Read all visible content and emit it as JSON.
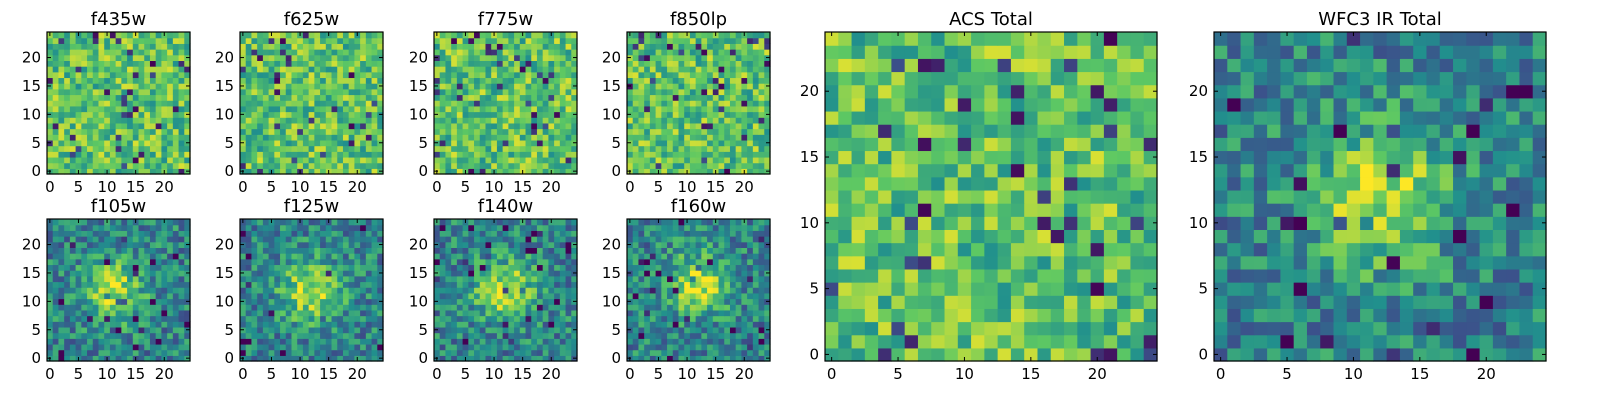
{
  "figure": {
    "colormap": "viridis",
    "colorscale": [
      "#440154",
      "#3b528b",
      "#21908d",
      "#5dc863",
      "#fde725"
    ],
    "background": "#ffffff"
  },
  "chart_data": [
    {
      "type": "heatmap",
      "title": "f435w",
      "grid_size": [
        25,
        25
      ],
      "xlim": [
        0,
        24
      ],
      "ylim": [
        0,
        24
      ],
      "xticks": [
        "0",
        "5",
        "10",
        "15",
        "20"
      ],
      "yticks": [
        "0",
        "5",
        "10",
        "15",
        "20"
      ],
      "pattern": "noise",
      "description_values": "pixel flux map, mostly mid-high values with scattered low pixels"
    },
    {
      "type": "heatmap",
      "title": "f625w",
      "grid_size": [
        25,
        25
      ],
      "xlim": [
        0,
        24
      ],
      "ylim": [
        0,
        24
      ],
      "xticks": [
        "0",
        "5",
        "10",
        "15",
        "20"
      ],
      "yticks": [
        "0",
        "5",
        "10",
        "15",
        "20"
      ],
      "pattern": "noise"
    },
    {
      "type": "heatmap",
      "title": "f775w",
      "grid_size": [
        25,
        25
      ],
      "xlim": [
        0,
        24
      ],
      "ylim": [
        0,
        24
      ],
      "xticks": [
        "0",
        "5",
        "10",
        "15",
        "20"
      ],
      "yticks": [
        "0",
        "5",
        "10",
        "15",
        "20"
      ],
      "pattern": "noise"
    },
    {
      "type": "heatmap",
      "title": "f850lp",
      "grid_size": [
        25,
        25
      ],
      "xlim": [
        0,
        24
      ],
      "ylim": [
        0,
        24
      ],
      "xticks": [
        "0",
        "5",
        "10",
        "15",
        "20"
      ],
      "yticks": [
        "0",
        "5",
        "10",
        "15",
        "20"
      ],
      "pattern": "noise"
    },
    {
      "type": "heatmap",
      "title": "f105w",
      "grid_size": [
        25,
        25
      ],
      "xlim": [
        0,
        24
      ],
      "ylim": [
        0,
        24
      ],
      "xticks": [
        "0",
        "5",
        "10",
        "15",
        "20"
      ],
      "yticks": [
        "0",
        "5",
        "10",
        "15",
        "20"
      ],
      "pattern": "source",
      "source_center": [
        11,
        12
      ]
    },
    {
      "type": "heatmap",
      "title": "f125w",
      "grid_size": [
        25,
        25
      ],
      "xlim": [
        0,
        24
      ],
      "ylim": [
        0,
        24
      ],
      "xticks": [
        "0",
        "5",
        "10",
        "15",
        "20"
      ],
      "yticks": [
        "0",
        "5",
        "10",
        "15",
        "20"
      ],
      "pattern": "source",
      "source_center": [
        12,
        12
      ]
    },
    {
      "type": "heatmap",
      "title": "f140w",
      "grid_size": [
        25,
        25
      ],
      "xlim": [
        0,
        24
      ],
      "ylim": [
        0,
        24
      ],
      "xticks": [
        "0",
        "5",
        "10",
        "15",
        "20"
      ],
      "yticks": [
        "0",
        "5",
        "10",
        "15",
        "20"
      ],
      "pattern": "source",
      "source_center": [
        12,
        12
      ]
    },
    {
      "type": "heatmap",
      "title": "f160w",
      "grid_size": [
        25,
        25
      ],
      "xlim": [
        0,
        24
      ],
      "ylim": [
        0,
        24
      ],
      "xticks": [
        "0",
        "5",
        "10",
        "15",
        "20"
      ],
      "yticks": [
        "0",
        "5",
        "10",
        "15",
        "20"
      ],
      "pattern": "source",
      "source_center": [
        12,
        13
      ]
    },
    {
      "type": "heatmap",
      "title": "ACS Total",
      "grid_size": [
        25,
        25
      ],
      "xlim": [
        0,
        24
      ],
      "ylim": [
        0,
        24
      ],
      "xticks": [
        "0",
        "5",
        "10",
        "15",
        "20"
      ],
      "yticks": [
        "0",
        "5",
        "10",
        "15",
        "20"
      ],
      "pattern": "noise"
    },
    {
      "type": "heatmap",
      "title": "WFC3 IR Total",
      "grid_size": [
        25,
        25
      ],
      "xlim": [
        0,
        24
      ],
      "ylim": [
        0,
        24
      ],
      "xticks": [
        "0",
        "5",
        "10",
        "15",
        "20"
      ],
      "yticks": [
        "0",
        "5",
        "10",
        "15",
        "20"
      ],
      "pattern": "source",
      "source_center": [
        12,
        12
      ]
    }
  ]
}
